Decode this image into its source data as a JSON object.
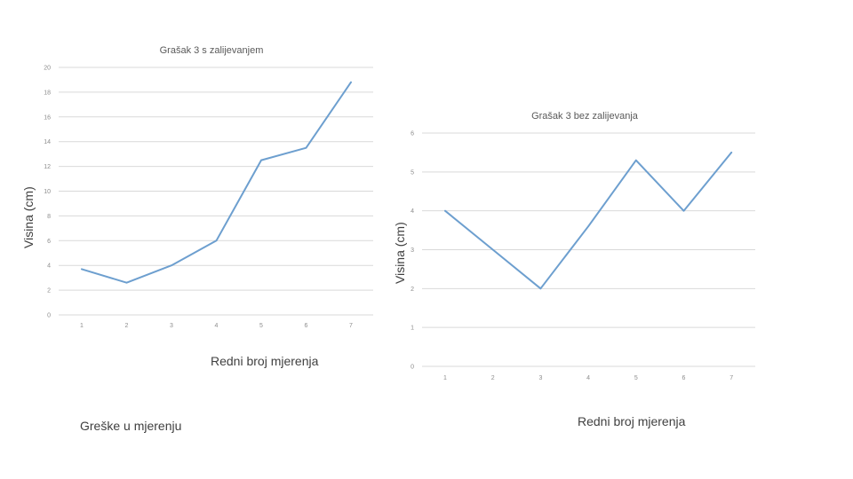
{
  "note_text": "Greške u mjerenju",
  "chart_data": [
    {
      "type": "line",
      "title": "Grašak 3 s zalijevanjem",
      "xlabel": "Redni broj mjerenja",
      "ylabel": "Visina (cm)",
      "categories": [
        "1",
        "2",
        "3",
        "4",
        "5",
        "6",
        "7"
      ],
      "values": [
        3.7,
        2.6,
        4.0,
        6.0,
        12.5,
        13.5,
        18.8
      ],
      "ylim": [
        0,
        20
      ],
      "yticks": [
        0,
        2,
        4,
        6,
        8,
        10,
        12,
        14,
        16,
        18,
        20
      ],
      "grid": true,
      "color": "#6d9fcf"
    },
    {
      "type": "line",
      "title": "Grašak 3 bez zalijevanja",
      "xlabel": "Redni broj mjerenja",
      "ylabel": "Visina (cm)",
      "categories": [
        "1",
        "2",
        "3",
        "4",
        "5",
        "6",
        "7"
      ],
      "values": [
        4.0,
        3.0,
        2.0,
        3.6,
        5.3,
        4.0,
        5.5
      ],
      "ylim": [
        0,
        6
      ],
      "yticks": [
        0,
        1,
        2,
        3,
        4,
        5,
        6
      ],
      "grid": true,
      "color": "#6d9fcf"
    }
  ]
}
